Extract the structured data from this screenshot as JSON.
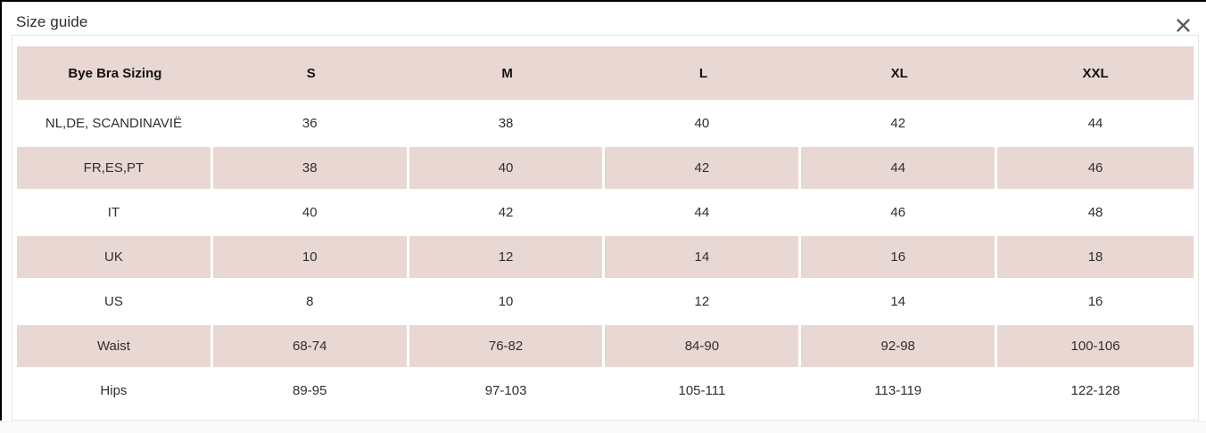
{
  "dialog": {
    "title": "Size guide",
    "close_icon": "close-icon"
  },
  "table": {
    "header": [
      "Bye Bra Sizing",
      "S",
      "M",
      "L",
      "XL",
      "XXL"
    ],
    "rows": [
      [
        "NL,DE, SCANDINAVIË",
        "36",
        "38",
        "40",
        "42",
        "44"
      ],
      [
        "FR,ES,PT",
        "38",
        "40",
        "42",
        "44",
        "46"
      ],
      [
        "IT",
        "40",
        "42",
        "44",
        "46",
        "48"
      ],
      [
        "UK",
        "10",
        "12",
        "14",
        "16",
        "18"
      ],
      [
        "US",
        "8",
        "10",
        "12",
        "14",
        "16"
      ],
      [
        "Waist",
        "68-74",
        "76-82",
        "84-90",
        "92-98",
        "100-106"
      ],
      [
        "Hips",
        "89-95",
        "97-103",
        "105-111",
        "113-119",
        "122-128"
      ]
    ]
  },
  "colors": {
    "row_pink": "#e9d7d3",
    "frame_black": "#000000",
    "close_gray": "#585858"
  }
}
